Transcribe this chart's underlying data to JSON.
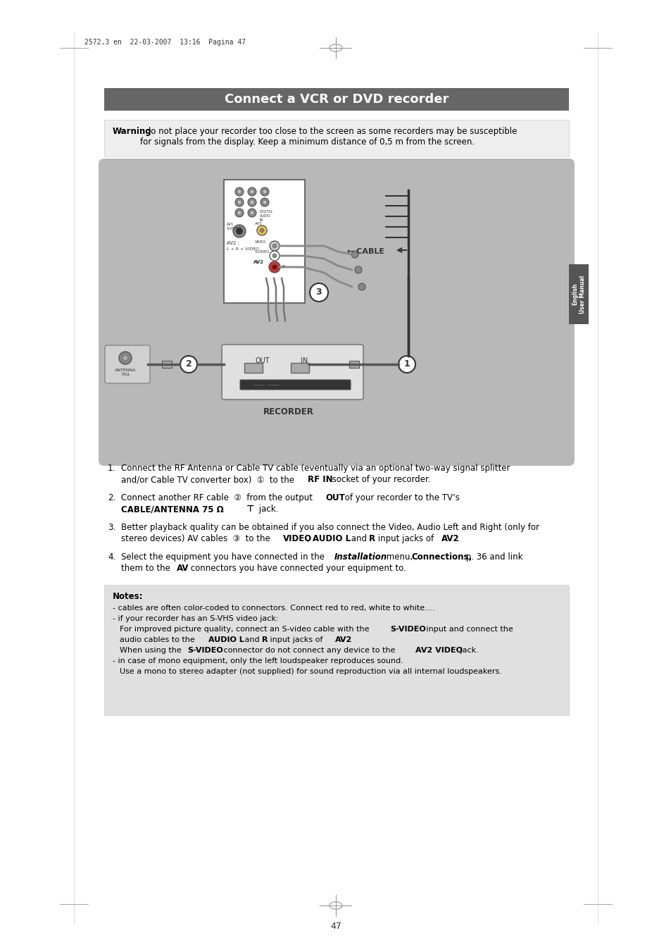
{
  "page_bg": "#ffffff",
  "title": "Connect a VCR or DVD recorder",
  "title_bg": "#666666",
  "title_color": "#ffffff",
  "header_text": "2572.3 en  22-03-2007  13:16  Pagina 47",
  "warning_text_bold": "Warning",
  "warning_text": ": do not place your recorder too close to the screen as some recorders may be susceptible\nfor signals from the display. Keep a minimum distance of 0,5 m from the screen.",
  "diagram_bg": "#b8b8b8",
  "recorder_label": "RECORDER",
  "notes_bg": "#e0e0e0",
  "english_label": "English\nUser Manual",
  "page_number": "47",
  "sidebar_bg": "#555555",
  "sidebar_text_color": "#ffffff"
}
